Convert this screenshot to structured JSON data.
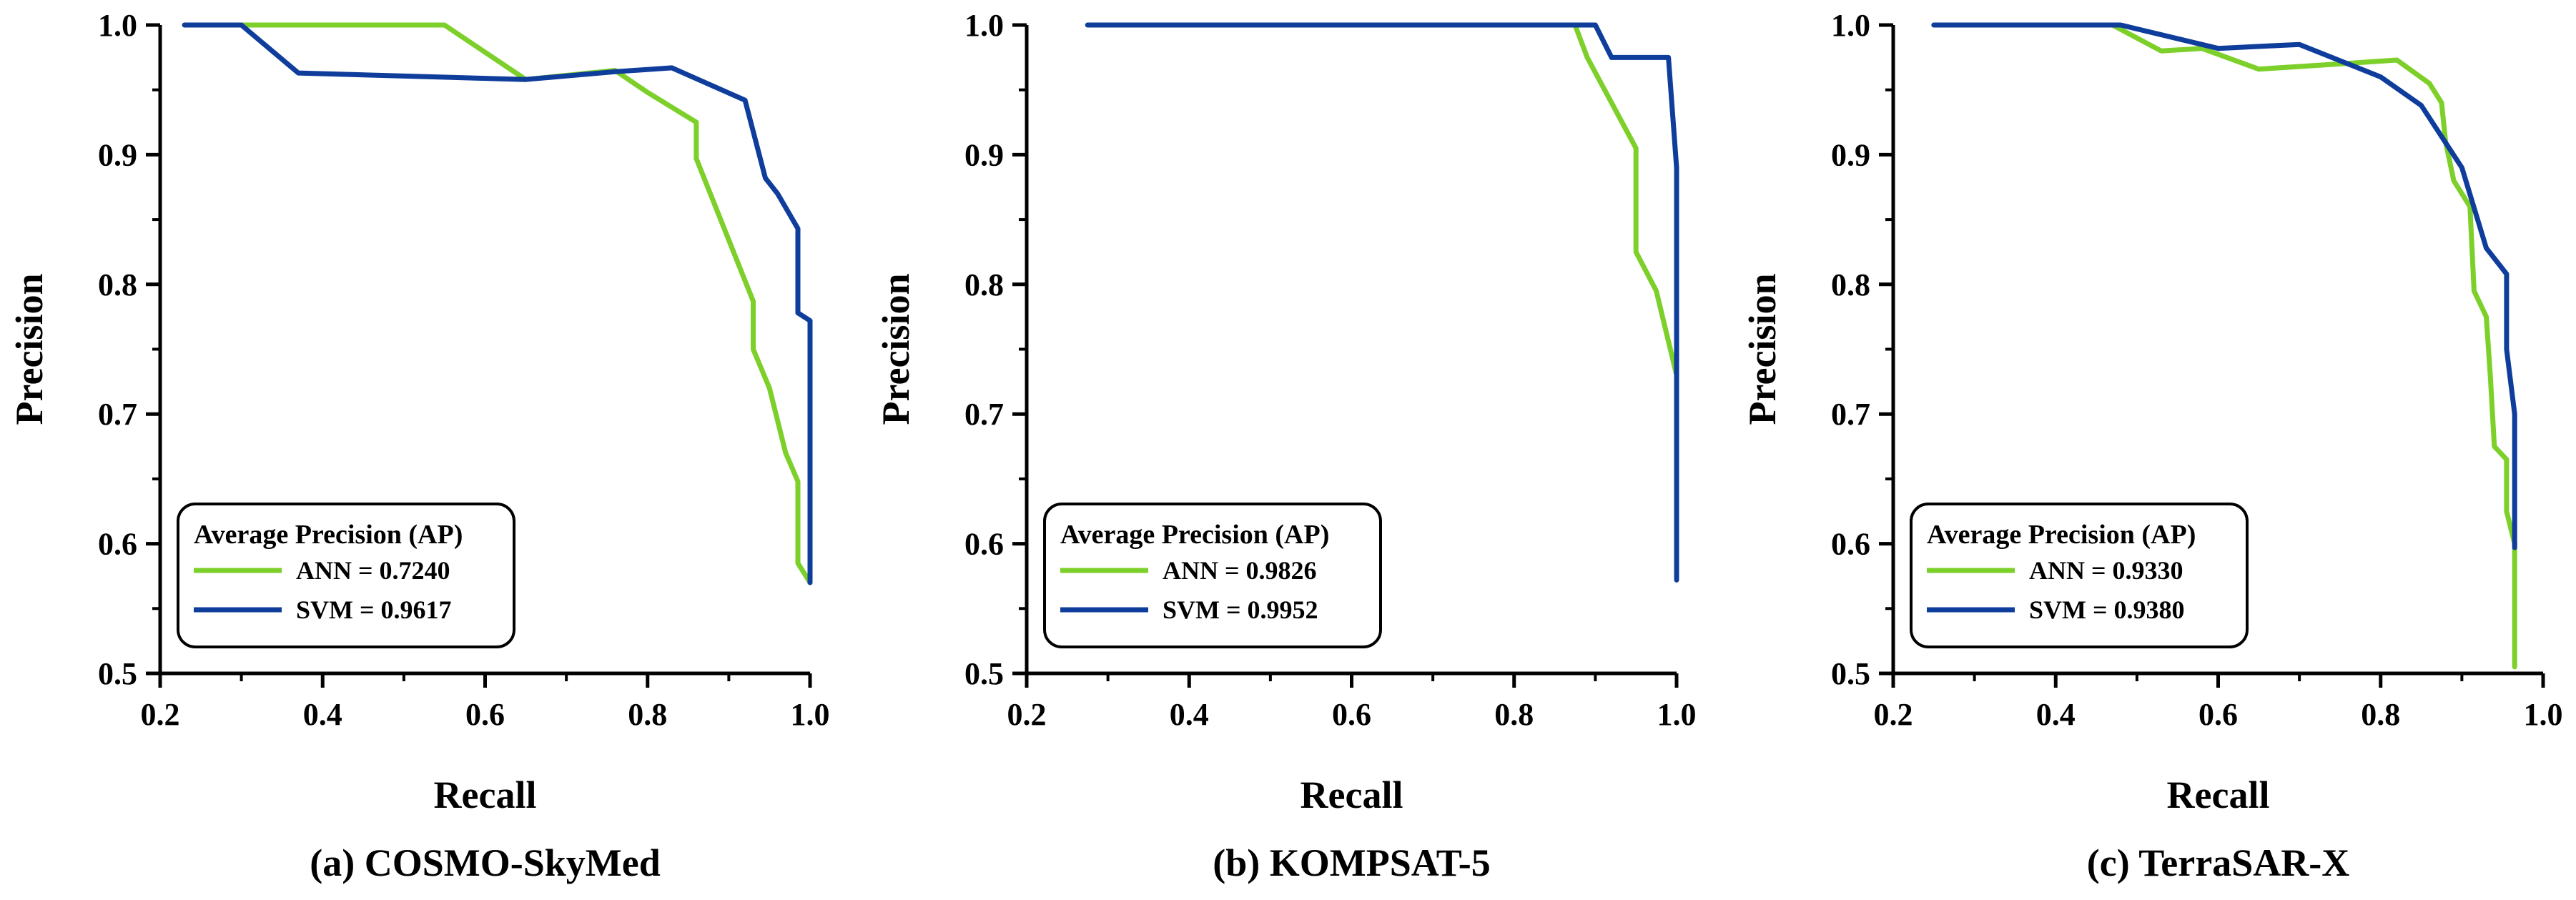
{
  "colors": {
    "ann": "#7dcf2a",
    "svm": "#0f3d9c",
    "axis": "#000000"
  },
  "chart_data": [
    {
      "type": "line",
      "caption": "(a) COSMO-SkyMed",
      "xlabel": "Recall",
      "ylabel": "Precision",
      "xlim": [
        0.2,
        1.0
      ],
      "ylim": [
        0.5,
        1.0
      ],
      "xticks": [
        0.2,
        0.4,
        0.6,
        0.8,
        1.0
      ],
      "xtick_labels": [
        "0.2",
        "0.4",
        "0.6",
        "0.8",
        "1.0"
      ],
      "yticks": [
        0.5,
        0.6,
        0.7,
        0.8,
        0.9,
        1.0
      ],
      "ytick_labels": [
        "0.5",
        "0.6",
        "0.7",
        "0.8",
        "0.9",
        "1.0"
      ],
      "legend_title": "Average Precision (AP)",
      "legend_position": "bottom-left",
      "series": [
        {
          "name": "ANN",
          "label": "ANN = 0.7240",
          "color": "#7dcf2a",
          "x": [
            0.23,
            0.3,
            0.55,
            0.65,
            0.76,
            0.8,
            0.86,
            0.86,
            0.93,
            0.93,
            0.95,
            0.97,
            0.985,
            0.985,
            1.0
          ],
          "y": [
            1.0,
            1.0,
            1.0,
            0.958,
            0.965,
            0.948,
            0.925,
            0.897,
            0.787,
            0.75,
            0.72,
            0.67,
            0.648,
            0.585,
            0.57
          ]
        },
        {
          "name": "SVM",
          "label": "SVM = 0.9617",
          "color": "#0f3d9c",
          "x": [
            0.23,
            0.3,
            0.37,
            0.65,
            0.76,
            0.83,
            0.92,
            0.945,
            0.96,
            0.985,
            0.985,
            1.0,
            1.0
          ],
          "y": [
            1.0,
            1.0,
            0.963,
            0.958,
            0.964,
            0.967,
            0.942,
            0.882,
            0.87,
            0.843,
            0.778,
            0.772,
            0.57
          ]
        }
      ]
    },
    {
      "type": "line",
      "caption": "(b) KOMPSAT-5",
      "xlabel": "Recall",
      "ylabel": "Precision",
      "xlim": [
        0.2,
        1.0
      ],
      "ylim": [
        0.5,
        1.0
      ],
      "xticks": [
        0.2,
        0.4,
        0.6,
        0.8,
        1.0
      ],
      "xtick_labels": [
        "0.2",
        "0.4",
        "0.6",
        "0.8",
        "1.0"
      ],
      "yticks": [
        0.5,
        0.6,
        0.7,
        0.8,
        0.9,
        1.0
      ],
      "ytick_labels": [
        "0.5",
        "0.6",
        "0.7",
        "0.8",
        "0.9",
        "1.0"
      ],
      "legend_title": "Average Precision (AP)",
      "legend_position": "bottom-left",
      "series": [
        {
          "name": "ANN",
          "label": "ANN = 0.9826",
          "color": "#7dcf2a",
          "x": [
            0.32,
            0.875,
            0.89,
            0.95,
            0.95,
            0.975,
            1.0,
            1.0
          ],
          "y": [
            1.0,
            1.0,
            0.975,
            0.905,
            0.825,
            0.795,
            0.73,
            0.585
          ]
        },
        {
          "name": "SVM",
          "label": "SVM = 0.9952",
          "color": "#0f3d9c",
          "x": [
            0.275,
            0.32,
            0.9,
            0.92,
            0.99,
            1.0,
            1.0
          ],
          "y": [
            1.0,
            1.0,
            1.0,
            0.975,
            0.975,
            0.89,
            0.572
          ]
        }
      ]
    },
    {
      "type": "line",
      "caption": "(c) TerraSAR-X",
      "xlabel": "Recall",
      "ylabel": "Precision",
      "xlim": [
        0.2,
        1.0
      ],
      "ylim": [
        0.5,
        1.0
      ],
      "xticks": [
        0.2,
        0.4,
        0.6,
        0.8,
        1.0
      ],
      "xtick_labels": [
        "0.2",
        "0.4",
        "0.6",
        "0.8",
        "1.0"
      ],
      "yticks": [
        0.5,
        0.6,
        0.7,
        0.8,
        0.9,
        1.0
      ],
      "ytick_labels": [
        "0.5",
        "0.6",
        "0.7",
        "0.8",
        "0.9",
        "1.0"
      ],
      "legend_title": "Average Precision (AP)",
      "legend_position": "bottom-left",
      "series": [
        {
          "name": "ANN",
          "label": "ANN = 0.9330",
          "color": "#7dcf2a",
          "x": [
            0.28,
            0.47,
            0.53,
            0.58,
            0.65,
            0.75,
            0.82,
            0.86,
            0.875,
            0.88,
            0.89,
            0.91,
            0.915,
            0.93,
            0.935,
            0.94,
            0.955,
            0.955,
            0.965,
            0.965
          ],
          "y": [
            1.0,
            1.0,
            0.98,
            0.982,
            0.966,
            0.97,
            0.973,
            0.955,
            0.94,
            0.91,
            0.88,
            0.86,
            0.795,
            0.775,
            0.73,
            0.675,
            0.665,
            0.625,
            0.6,
            0.505
          ]
        },
        {
          "name": "SVM",
          "label": "SVM = 0.9380",
          "color": "#0f3d9c",
          "x": [
            0.25,
            0.28,
            0.48,
            0.6,
            0.7,
            0.8,
            0.85,
            0.9,
            0.93,
            0.955,
            0.955,
            0.965,
            0.965
          ],
          "y": [
            1.0,
            1.0,
            1.0,
            0.982,
            0.985,
            0.96,
            0.938,
            0.89,
            0.828,
            0.808,
            0.75,
            0.7,
            0.597
          ]
        }
      ]
    }
  ]
}
